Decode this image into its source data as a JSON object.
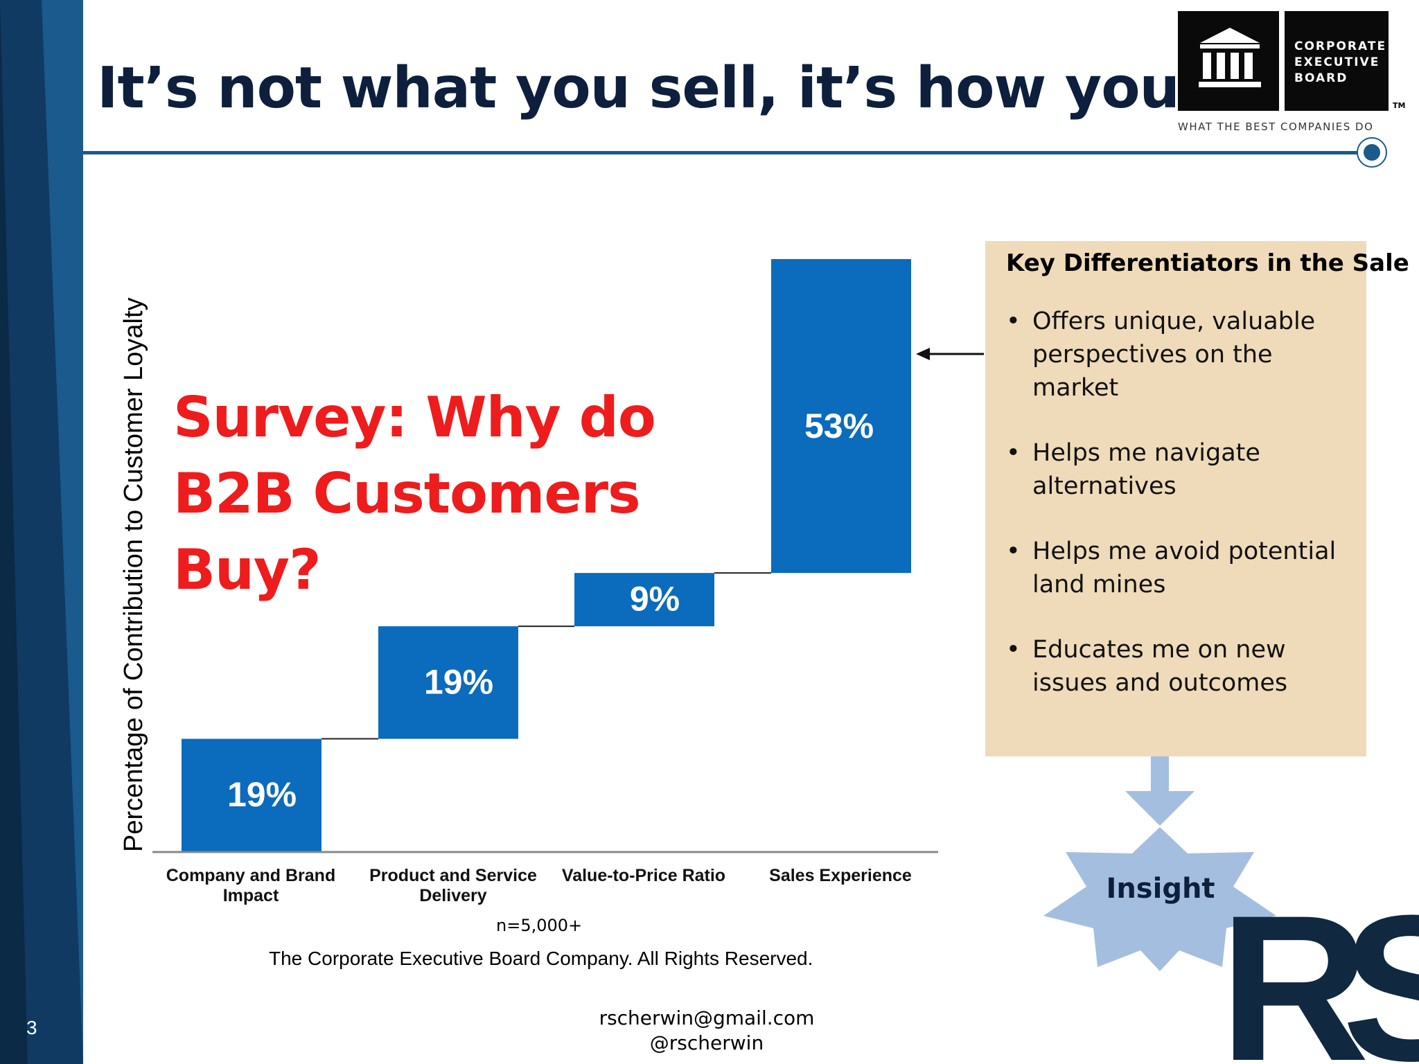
{
  "slide": {
    "title": "It’s not what you sell, it’s how you sell",
    "number": "3",
    "survey_text": "Survey: Why do B2B Customers Buy?",
    "footnote": "n=5,000+",
    "copyright": "The Corporate Executive Board Company. All Rights Reserved.",
    "contact_email": "rscherwin@gmail.com",
    "contact_handle": "@rscherwin"
  },
  "logo": {
    "lines": [
      "CORPORATE",
      "EXECUTIVE",
      "BOARD"
    ],
    "tagline": "WHAT THE BEST COMPANIES DO",
    "tm": "TM"
  },
  "colors": {
    "bar": "#0b6bbd",
    "survey_text": "#ee1c1c",
    "title": "#0d1f3c",
    "panel": "#efdbb9",
    "insight_star": "#a4bedf",
    "sidebar_dark": "#0a2a46",
    "sidebar_mid": "#1a5a8c"
  },
  "chart_data": {
    "type": "bar",
    "subtype": "waterfall",
    "categories": [
      "Company and Brand Impact",
      "Product and Service Delivery",
      "Value-to-Price Ratio",
      "Sales Experience"
    ],
    "values": [
      19,
      19,
      9,
      53
    ],
    "data_labels": [
      "19%",
      "19%",
      "9%",
      "53%"
    ],
    "ylabel": "Percentage of Contribution to Customer Loyalty",
    "ylim": [
      0,
      100
    ],
    "grid": false,
    "legend": "none"
  },
  "panel": {
    "title": "Key Differentiators in the Sale",
    "bullet_symbol": "•",
    "items": [
      "Offers unique, valuable perspectives on the market",
      "Helps me navigate alternatives",
      "Helps me avoid potential land mines",
      "Educates me on new issues and outcomes"
    ]
  },
  "insight": {
    "label": "Insight"
  },
  "rs_logo": {
    "text": "RS"
  }
}
